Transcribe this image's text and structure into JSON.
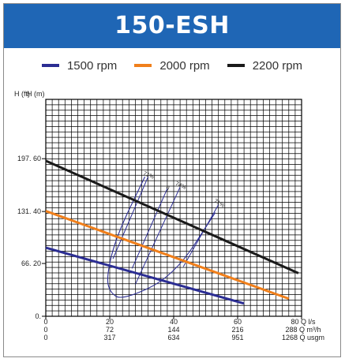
{
  "title": "150-ESH",
  "legend": [
    {
      "label": "1500 rpm",
      "color": "#2b2d93"
    },
    {
      "label": "2000 rpm",
      "color": "#f07f1b"
    },
    {
      "label": "2200 rpm",
      "color": "#1a1a1a"
    }
  ],
  "chart_data": {
    "type": "line",
    "title": "150-ESH",
    "y_axis": {
      "labels": [
        "H (ft)",
        "H (m)"
      ],
      "ticks": [
        "0.",
        "66. 20",
        "131. 40",
        "197. 60"
      ],
      "tick_values": [
        0,
        66.2,
        131.4,
        197.6
      ],
      "ylim": [
        0,
        272
      ]
    },
    "x_axis": {
      "xlim": [
        0,
        80
      ],
      "rows": [
        {
          "unit": "Q l/s",
          "ticks": [
            "0",
            "20",
            "40",
            "60",
            "80"
          ]
        },
        {
          "unit": "Q m³/h",
          "ticks": [
            "0",
            "72",
            "144",
            "216",
            "288"
          ]
        },
        {
          "unit": "Q usgm",
          "ticks": [
            "0",
            "317",
            "634",
            "951",
            "1268"
          ]
        }
      ],
      "tick_values": [
        0,
        20,
        40,
        60,
        80
      ]
    },
    "grid": true,
    "legend_position": "top",
    "series": [
      {
        "name": "1500 rpm",
        "color": "#2b2d93",
        "x": [
          0,
          62
        ],
        "y": [
          86,
          16
        ]
      },
      {
        "name": "2000 rpm",
        "color": "#f07f1b",
        "x": [
          0,
          76
        ],
        "y": [
          132,
          22
        ]
      },
      {
        "name": "2200 rpm",
        "color": "#1a1a1a",
        "x": [
          0,
          79
        ],
        "y": [
          195,
          54
        ]
      }
    ],
    "efficiency_label": "71%",
    "efficiency_curve": {
      "color": "#2b2d93",
      "x": [
        31,
        22,
        19,
        20,
        24,
        40,
        53
      ],
      "y": [
        175,
        100,
        50,
        30,
        20,
        50,
        130
      ]
    },
    "efficiency_guides": [
      {
        "label": "71%",
        "x": [
          21,
          32
        ],
        "y": [
          72,
          175
        ]
      },
      {
        "label": "η",
        "x": [
          27,
          38
        ],
        "y": [
          60,
          160
        ]
      },
      {
        "label": "74%",
        "x": [
          28,
          42
        ],
        "y": [
          40,
          162
        ]
      },
      {
        "label": "71%",
        "x": [
          43,
          54
        ],
        "y": [
          62,
          140
        ]
      }
    ]
  }
}
